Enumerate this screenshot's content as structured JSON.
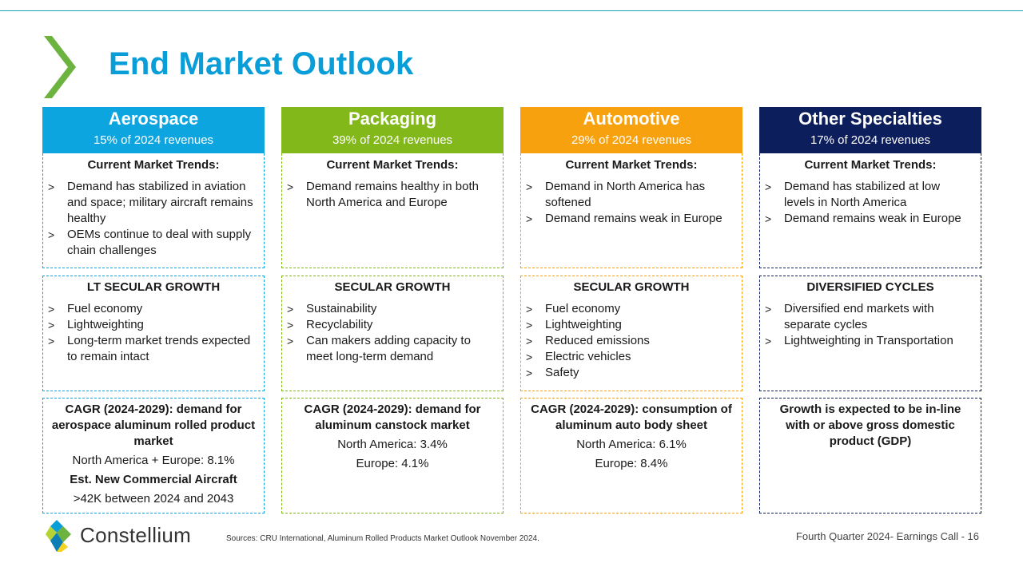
{
  "title": "End Market Outlook",
  "colors": {
    "accent": "#0a9ed9",
    "chevron": "#6db33f",
    "aerospace": "#0ca5e0",
    "packaging": "#82b81a",
    "automotive": "#f7a10e",
    "other": "#0d1e5c"
  },
  "columns": [
    {
      "name": "Aerospace",
      "revenue": "15% of 2024 revenues",
      "trends_title": "Current Market Trends:",
      "trends": [
        "Demand has stabilized in aviation and space; military aircraft remains healthy",
        "OEMs continue to deal with supply chain challenges"
      ],
      "growth_title": "LT SECULAR GROWTH",
      "growth": [
        "Fuel economy",
        "Lightweighting",
        "Long-term market trends expected to remain intact"
      ],
      "cagr_title": "CAGR (2024-2029): demand for aerospace aluminum rolled product market",
      "cagr_lines": [
        "North America + Europe: 8.1%"
      ],
      "extra_title": "Est. New Commercial Aircraft",
      "extra_line": ">42K between 2024 and 2043"
    },
    {
      "name": "Packaging",
      "revenue": "39% of 2024 revenues",
      "trends_title": "Current Market Trends:",
      "trends": [
        "Demand remains healthy in both North America and Europe"
      ],
      "growth_title": "SECULAR GROWTH",
      "growth": [
        "Sustainability",
        "Recyclability",
        "Can makers adding capacity to meet long-term demand"
      ],
      "cagr_title": "CAGR (2024-2029): demand for aluminum canstock market",
      "cagr_lines": [
        "North America: 3.4%",
        "Europe: 4.1%"
      ]
    },
    {
      "name": "Automotive",
      "revenue": "29% of 2024 revenues",
      "trends_title": "Current Market Trends:",
      "trends": [
        "Demand in North America has softened",
        "Demand remains weak in Europe"
      ],
      "growth_title": "SECULAR GROWTH",
      "growth": [
        "Fuel economy",
        "Lightweighting",
        "Reduced emissions",
        "Electric vehicles",
        "Safety"
      ],
      "cagr_title": "CAGR (2024-2029): consumption of aluminum auto body sheet",
      "cagr_lines": [
        "North America: 6.1%",
        "Europe: 8.4%"
      ]
    },
    {
      "name": "Other Specialties",
      "revenue": "17% of 2024 revenues",
      "trends_title": "Current Market Trends:",
      "trends": [
        "Demand has stabilized at low levels in North America",
        "Demand remains weak in Europe"
      ],
      "growth_title": "DIVERSIFIED CYCLES",
      "growth": [
        "Diversified end markets with separate cycles",
        "Lightweighting in Transportation"
      ],
      "cagr_title": "Growth is expected to be in-line with or above gross domestic product (GDP)",
      "cagr_lines": []
    }
  ],
  "bullet_marker": ">",
  "brand": "Constellium",
  "sources": "Sources: CRU International, Aluminum Rolled Products Market Outlook November 2024.",
  "footer": "Fourth Quarter 2024-  Earnings Call - 16"
}
